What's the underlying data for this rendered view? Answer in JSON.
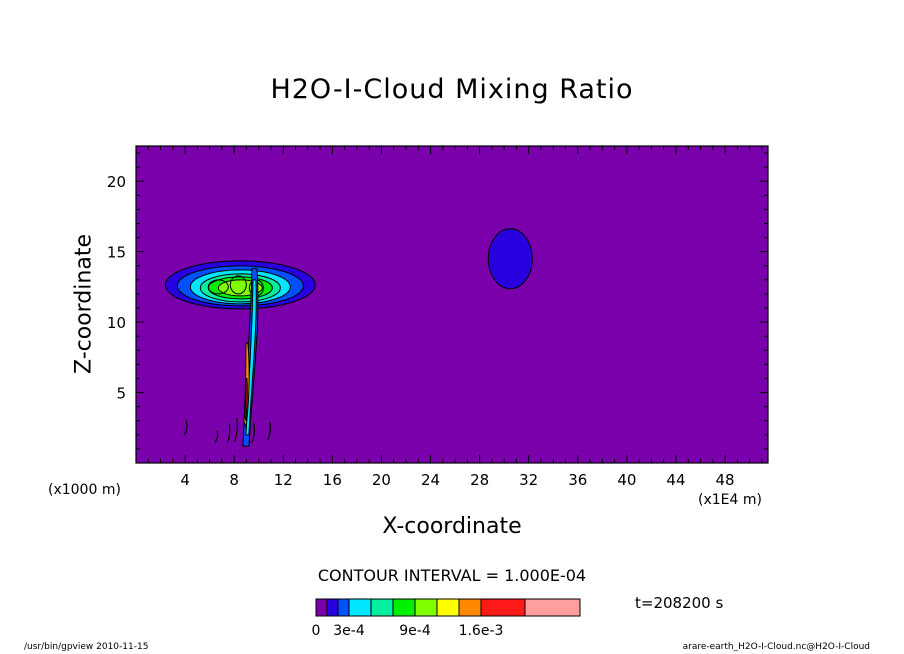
{
  "chart_data": {
    "type": "contour",
    "title": "H2O-I-Cloud Mixing Ratio",
    "xlabel": "X-coordinate",
    "ylabel": "Z-coordinate",
    "x_unit_label": "(x1E4 m)",
    "y_unit_label": "(x1000 m)",
    "x_ticks": [
      4,
      8,
      12,
      16,
      20,
      24,
      28,
      32,
      36,
      40,
      44,
      48
    ],
    "y_ticks": [
      5,
      10,
      15,
      20
    ],
    "xlim": [
      0,
      51.5
    ],
    "ylim": [
      0,
      22.5
    ],
    "contour_interval_text": "CONTOUR INTERVAL = 1.000E-04",
    "time_text": "t=208200 s",
    "colorbar": {
      "colors": [
        "#7a00ac",
        "#2800e0",
        "#0050ff",
        "#00e6ff",
        "#00f0a0",
        "#00ee00",
        "#80ff00",
        "#ffff00",
        "#ff8800",
        "#ff1a1a",
        "#ff9e9e"
      ],
      "labels": [
        {
          "text": "0",
          "at": 0
        },
        {
          "text": "3e-4",
          "at": 0.0003
        },
        {
          "text": "9e-4",
          "at": 0.0009
        },
        {
          "text": "1.6e-3",
          "at": 0.0016
        }
      ]
    },
    "features": [
      {
        "name": "anvil-cloud",
        "x": 8.5,
        "z": 12.5,
        "peak_level": 0.0008
      },
      {
        "name": "convective-column",
        "x": 9.2,
        "z": 7.0,
        "peak_level": 0.0016
      },
      {
        "name": "cloud-blob-right",
        "x": 30.5,
        "z": 14.5,
        "peak_level": 0.0001
      }
    ]
  },
  "footer": {
    "left": "/usr/bin/gpview   2010-11-15",
    "right": "arare-earth_H2O-I-Cloud.nc@H2O-I-Cloud"
  }
}
